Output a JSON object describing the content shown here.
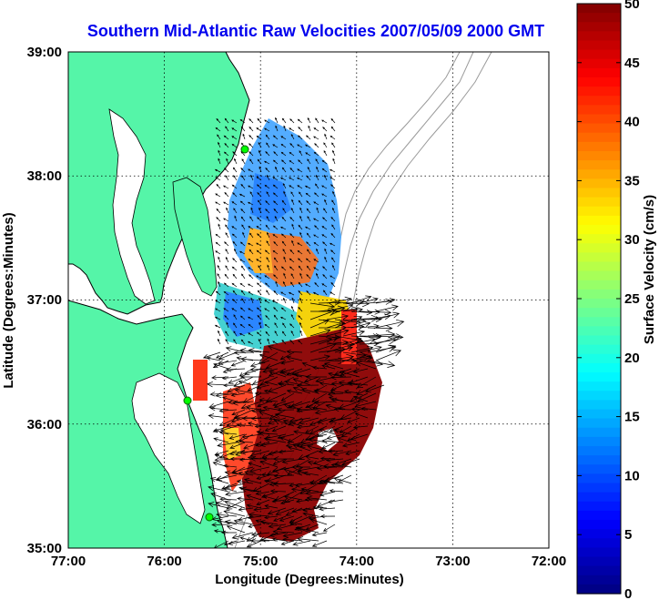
{
  "title": "Southern Mid-Atlantic Raw Velocities 2007/05/09 2000 GMT",
  "x_axis": {
    "label": "Longitude (Degrees:Minutes)",
    "ticks": [
      "77:00",
      "76:00",
      "75:00",
      "74:00",
      "73:00",
      "72:00"
    ]
  },
  "y_axis": {
    "label": "Latitude (Degrees:Minutes)",
    "ticks": [
      "39:00",
      "38:00",
      "37:00",
      "36:00",
      "35:00"
    ]
  },
  "colorbar": {
    "label": "Surface Velocity (cm/s)",
    "ticks": [
      "50",
      "45",
      "40",
      "35",
      "30",
      "25",
      "20",
      "15",
      "10",
      "5",
      "0"
    ],
    "range": [
      0,
      50
    ],
    "colormap": "jet"
  },
  "map": {
    "lon_range": [
      -77,
      -72
    ],
    "lat_range": [
      35,
      39
    ],
    "grid": "dotted",
    "land_color": "#55f5a8",
    "coast_color": "#000000",
    "bathymetry_color": "#9a9a9a",
    "stations": [
      {
        "lon": -75.2,
        "lat": 38.2
      },
      {
        "lon": -75.7,
        "lat": 36.15
      },
      {
        "lon": -75.5,
        "lat": 35.25
      }
    ]
  }
}
